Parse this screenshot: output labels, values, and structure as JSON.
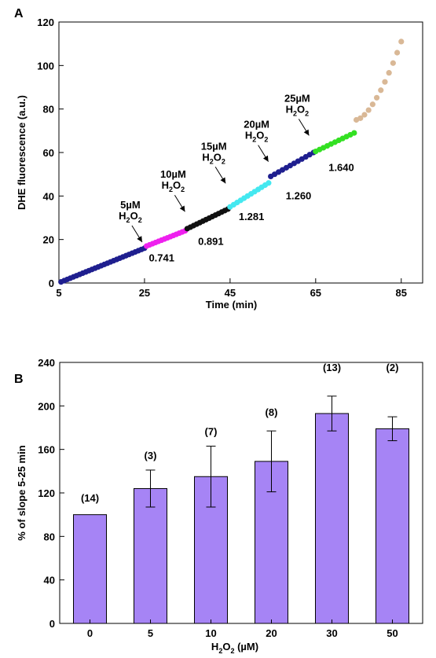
{
  "chart_data": [
    {
      "panel": "A",
      "type": "scatter",
      "xlabel": "Time (min)",
      "ylabel": "DHE fluorescence (a.u.)",
      "xlim": [
        5,
        90
      ],
      "ylim": [
        0,
        120
      ],
      "xticks": [
        5,
        25,
        45,
        65,
        85
      ],
      "yticks": [
        0,
        20,
        40,
        60,
        80,
        100,
        120
      ],
      "grid": false,
      "segments": [
        {
          "color": "#1f1f8f",
          "x_start": 5.5,
          "x_end": 25,
          "y_start": 0.5,
          "y_end": 16,
          "n": 28
        },
        {
          "color": "#ee20ee",
          "x_start": 25.5,
          "x_end": 34.5,
          "y_start": 17,
          "y_end": 24,
          "n": 14
        },
        {
          "color": "#111111",
          "x_start": 35,
          "x_end": 44.5,
          "y_start": 25,
          "y_end": 34,
          "n": 14
        },
        {
          "color": "#44e8f0",
          "x_start": 45,
          "x_end": 54,
          "y_start": 35,
          "y_end": 46,
          "n": 12
        },
        {
          "color": "#1f1f8f",
          "x_start": 54.5,
          "x_end": 64.5,
          "y_start": 49,
          "y_end": 60,
          "n": 12
        },
        {
          "color": "#33e022",
          "x_start": 65,
          "x_end": 74,
          "y_start": 60.5,
          "y_end": 69,
          "n": 11
        },
        {
          "color": "#d9b896",
          "x_start": 74.5,
          "x_end": 85,
          "y_start": 75,
          "y_end": 111,
          "n": 12
        }
      ],
      "annotations": [
        {
          "conc": "5µM",
          "species": "H",
          "sub1": "2",
          "mid": "O",
          "sub2": "2",
          "x": 25,
          "y": 17
        },
        {
          "conc": "10µM",
          "species": "H",
          "sub1": "2",
          "mid": "O",
          "sub2": "2",
          "x": 35,
          "y": 31
        },
        {
          "conc": "15µM",
          "species": "H",
          "sub1": "2",
          "mid": "O",
          "sub2": "2",
          "x": 44.5,
          "y": 44
        },
        {
          "conc": "20µM",
          "species": "H",
          "sub1": "2",
          "mid": "O",
          "sub2": "2",
          "x": 54.5,
          "y": 54
        },
        {
          "conc": "25µM",
          "species": "H",
          "sub1": "2",
          "mid": "O",
          "sub2": "2",
          "x": 64,
          "y": 66
        }
      ],
      "slopes": [
        {
          "label": "0.741",
          "x": 29,
          "y": 10
        },
        {
          "label": "0.891",
          "x": 40.5,
          "y": 17.5
        },
        {
          "label": "1.281",
          "x": 50,
          "y": 29
        },
        {
          "label": "1.260",
          "x": 61,
          "y": 38.5
        },
        {
          "label": "1.640",
          "x": 71,
          "y": 51.5
        }
      ]
    },
    {
      "panel": "B",
      "type": "bar",
      "ylabel": "% of slope 5-25 min",
      "xlabel_main": "H",
      "xlabel_sub1": "2",
      "xlabel_mid": "O",
      "xlabel_sub2": "2",
      "xlabel_unit": " (µM)",
      "categories": [
        "0",
        "5",
        "10",
        "20",
        "30",
        "50"
      ],
      "values": [
        100,
        124,
        135,
        149,
        193,
        179
      ],
      "errors": [
        0,
        17,
        28,
        28,
        16,
        11
      ],
      "counts": [
        "(14)",
        "(3)",
        "(7)",
        "(8)",
        "(13)",
        "(2)"
      ],
      "count_y": [
        112,
        151,
        173,
        191,
        232,
        232
      ],
      "ylim": [
        0,
        240
      ],
      "yticks": [
        0,
        40,
        80,
        120,
        160,
        200,
        240
      ],
      "bar_color": "#a684f5",
      "grid": false
    }
  ],
  "panels": {
    "a": "A",
    "b": "B"
  }
}
